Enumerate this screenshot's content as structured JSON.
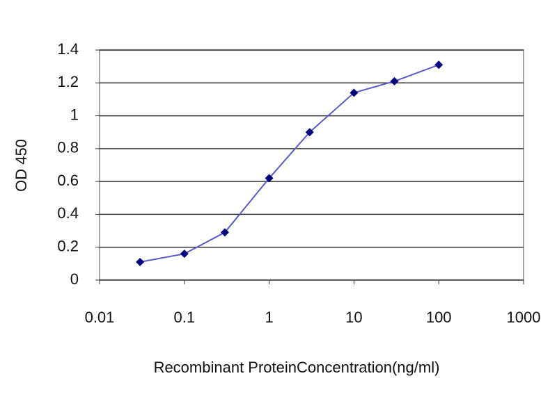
{
  "chart_data": {
    "type": "line",
    "x_label": "Recombinant ProteinConcentration(ng/ml)",
    "y_label": "OD 450",
    "x": [
      0.03,
      0.1,
      0.3,
      1,
      3,
      10,
      30,
      100
    ],
    "values": [
      0.11,
      0.16,
      0.29,
      0.62,
      0.9,
      1.14,
      1.21,
      1.31
    ],
    "color": "#000080",
    "xscale": "log",
    "xlim": [
      0.01,
      1000
    ],
    "xticks": [
      0.01,
      0.1,
      1,
      10,
      100,
      1000
    ],
    "ylim": [
      0,
      1.4
    ],
    "yticks": [
      0,
      0.2,
      0.4,
      0.6,
      0.8,
      1,
      1.2,
      1.4
    ],
    "grid": true
  }
}
